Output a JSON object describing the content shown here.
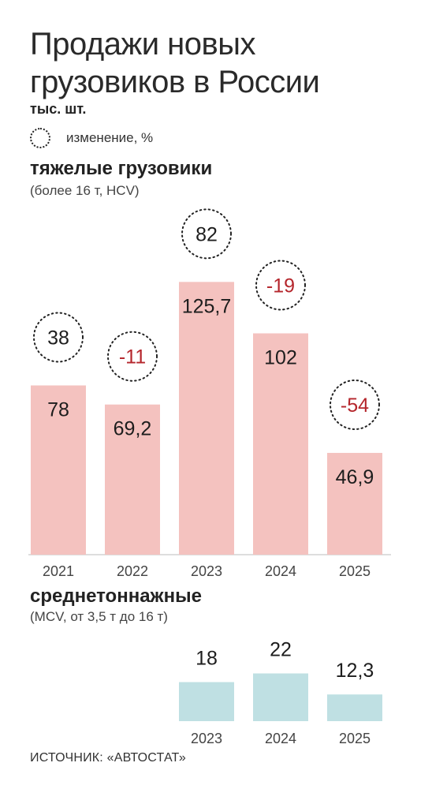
{
  "title": "Продажи новых грузовиков в России",
  "unit": "тыс. шт.",
  "legend": {
    "label": "изменение, %"
  },
  "source": "ИСТОЧНИК: «АВТОСТАТ»",
  "colors": {
    "heavy_bar": "#f4c2bf",
    "medium_bar": "#bfe0e3",
    "negative_text": "#b5262c",
    "positive_text": "#1d1d1d",
    "axis": "#bdbdbd"
  },
  "chart_data": [
    {
      "type": "bar",
      "title": "тяжелые грузовики",
      "subtitle": "(более 16 т, HCV)",
      "categories": [
        "2021",
        "2022",
        "2023",
        "2024",
        "2025"
      ],
      "values": [
        78,
        69.2,
        125.7,
        102,
        46.9
      ],
      "value_labels": [
        "78",
        "69,2",
        "125,7",
        "102",
        "46,9"
      ],
      "change": [
        38,
        -11,
        82,
        -19,
        -54
      ],
      "change_labels": [
        "38",
        "-11",
        "82",
        "-19",
        "-54"
      ],
      "xlabel": "",
      "ylabel": "",
      "ylim": [
        0,
        135
      ]
    },
    {
      "type": "bar",
      "title": "среднетоннажные",
      "subtitle": "(MCV, от 3,5 т до 16 т)",
      "categories": [
        "2023",
        "2024",
        "2025"
      ],
      "values": [
        18,
        22,
        12.3
      ],
      "value_labels": [
        "18",
        "22",
        "12,3"
      ],
      "xlabel": "",
      "ylabel": "",
      "ylim": [
        0,
        135
      ]
    }
  ]
}
